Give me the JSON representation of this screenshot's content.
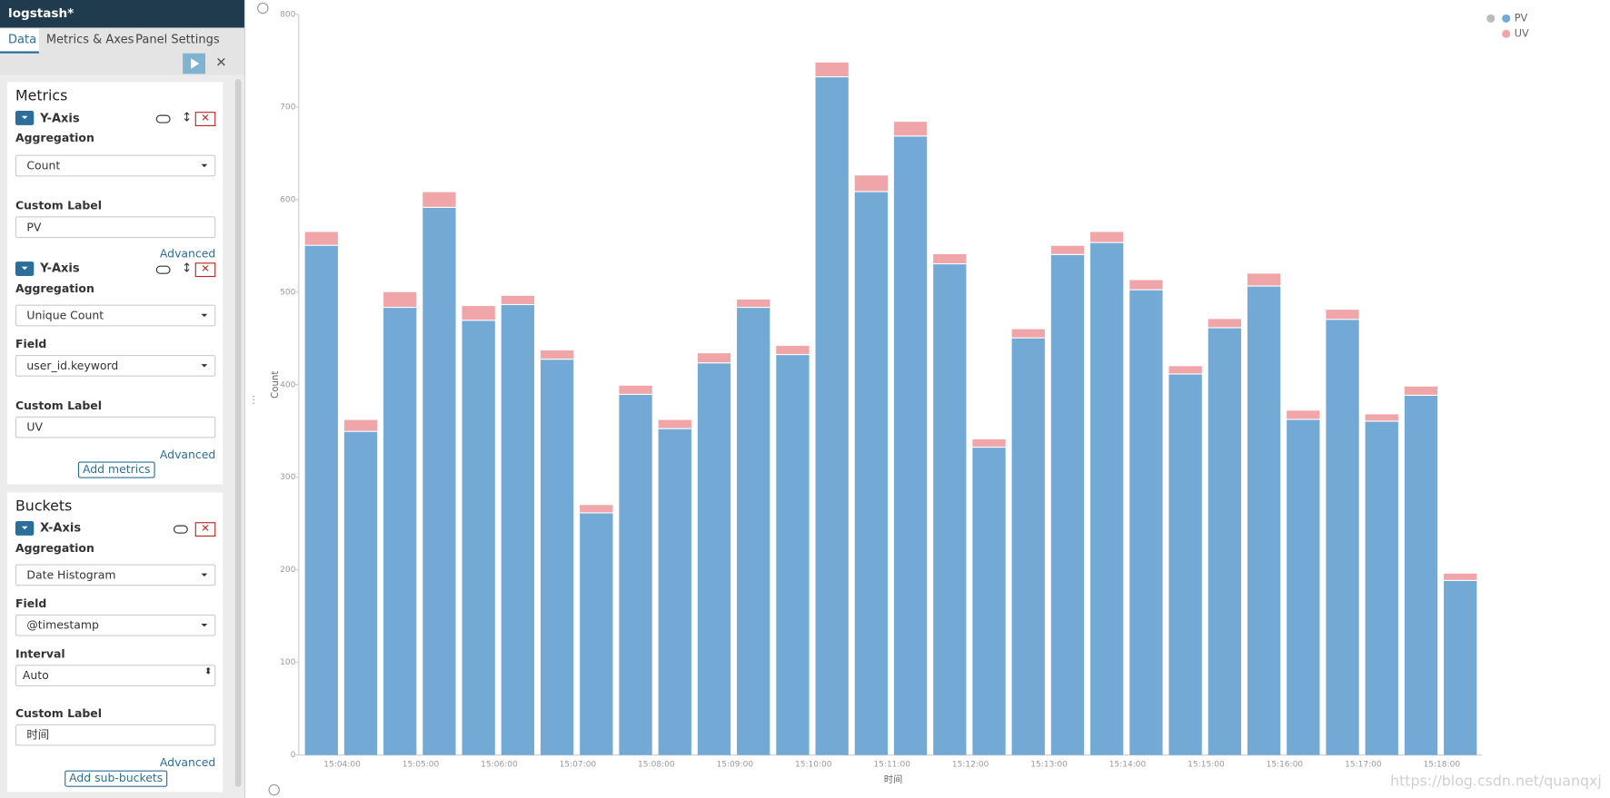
{
  "sidebar": {
    "title": "logstash*",
    "tabs": [
      "Data",
      "Metrics & Axes",
      "Panel Settings"
    ],
    "metrics": {
      "heading": "Metrics",
      "items": [
        {
          "label": "Y-Axis",
          "fields": [
            {
              "label": "Aggregation",
              "value": "Count"
            },
            {
              "label": "Custom Label",
              "value": "PV"
            }
          ],
          "advanced": "Advanced"
        },
        {
          "label": "Y-Axis",
          "fields": [
            {
              "label": "Aggregation",
              "value": "Unique Count"
            },
            {
              "label": "Field",
              "value": "user_id.keyword"
            },
            {
              "label": "Custom Label",
              "value": "UV"
            }
          ],
          "advanced": "Advanced"
        }
      ],
      "add": "Add metrics"
    },
    "buckets": {
      "heading": "Buckets",
      "items": [
        {
          "label": "X-Axis",
          "fields": [
            {
              "label": "Aggregation",
              "value": "Date Histogram"
            },
            {
              "label": "Field",
              "value": "@timestamp"
            },
            {
              "label": "Interval",
              "value": "Auto"
            },
            {
              "label": "Custom Label",
              "value": "时间"
            }
          ],
          "advanced": "Advanced"
        }
      ],
      "add": "Add sub-buckets"
    }
  },
  "chart_data": {
    "type": "stacked_bar",
    "x_label": "时间",
    "y_label": "Count",
    "categories": [
      null,
      "15:04:00",
      null,
      "15:05:00",
      null,
      "15:06:00",
      null,
      "15:07:00",
      null,
      "15:08:00",
      null,
      "15:09:00",
      null,
      "15:10:00",
      null,
      "15:11:00",
      null,
      "15:12:00",
      null,
      "15:13:00",
      null,
      "15:14:00",
      null,
      "15:15:00",
      null,
      "15:16:00",
      null,
      "15:17:00",
      null,
      "15:18:00"
    ],
    "series": [
      {
        "name": "PV",
        "color": "#72aad5",
        "values": [
          550,
          349,
          483,
          591,
          469,
          486,
          427,
          261,
          389,
          352,
          423,
          483,
          432,
          732,
          608,
          668,
          530,
          332,
          450,
          540,
          553,
          502,
          411,
          461,
          506,
          362,
          470,
          360,
          388,
          188
        ]
      },
      {
        "name": "UV",
        "color": "#f0a5a8",
        "values": [
          15,
          13,
          17,
          17,
          16,
          10,
          10,
          9,
          10,
          10,
          11,
          9,
          10,
          16,
          18,
          16,
          11,
          9,
          10,
          10,
          12,
          11,
          9,
          10,
          14,
          10,
          11,
          8,
          10,
          8
        ]
      }
    ],
    "ylim": [
      0,
      800
    ],
    "yticks": [
      0,
      100,
      200,
      300,
      400,
      500,
      600,
      700,
      800
    ],
    "grid": false,
    "legend": "top-right"
  },
  "watermark": "https://blog.csdn.net/quanqxj"
}
